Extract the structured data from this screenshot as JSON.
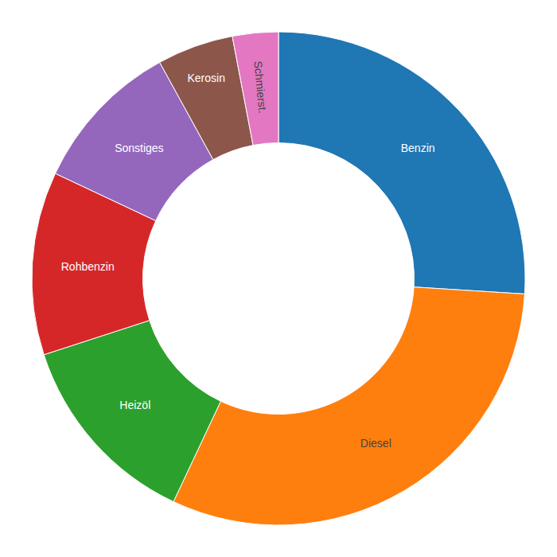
{
  "chart_data": {
    "type": "donut",
    "categories": [
      "Benzin",
      "Diesel",
      "Heizöl",
      "Rohbenzin",
      "Sonstiges",
      "Kerosin",
      "Schmierst."
    ],
    "values": [
      26,
      31,
      13,
      12,
      10,
      5,
      3
    ]
  }
}
